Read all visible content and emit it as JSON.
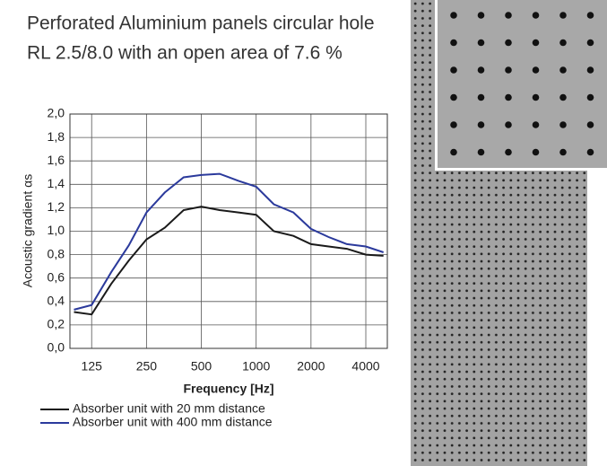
{
  "chart_data": {
    "type": "line",
    "title": "Perforated Aluminium panels circular hole",
    "subtitle": "RL 2.5/8.0 with an open area of 7.6 %",
    "x_label": "Frequency [Hz]",
    "y_label": "Acoustic gradient αs",
    "x": [
      100,
      125,
      160,
      200,
      250,
      315,
      400,
      500,
      630,
      800,
      1000,
      1250,
      1600,
      2000,
      2500,
      3150,
      4000,
      5000
    ],
    "series": [
      {
        "name": "Absorber unit with 20 mm distance",
        "color": "#1a1a1a",
        "values": [
          0.31,
          0.29,
          0.55,
          0.75,
          0.93,
          1.03,
          1.18,
          1.21,
          1.18,
          1.16,
          1.14,
          1.0,
          0.96,
          0.89,
          0.87,
          0.85,
          0.8,
          0.79
        ]
      },
      {
        "name": "Absorber unit with 400 mm distance",
        "color": "#2b3a9c",
        "values": [
          0.33,
          0.37,
          0.65,
          0.88,
          1.16,
          1.33,
          1.46,
          1.48,
          1.49,
          1.43,
          1.38,
          1.23,
          1.16,
          1.02,
          0.95,
          0.89,
          0.87,
          0.82
        ]
      }
    ],
    "xscale": "log",
    "xlim": [
      95,
      5250
    ],
    "xticks": [
      125,
      250,
      500,
      1000,
      2000,
      4000
    ],
    "ylim": [
      0,
      2
    ],
    "yticks": [
      {
        "value": 0,
        "label": "0,0"
      },
      {
        "value": 0.2,
        "label": "0,2"
      },
      {
        "value": 0.4,
        "label": "0,4"
      },
      {
        "value": 0.6,
        "label": "0,6"
      },
      {
        "value": 0.8,
        "label": "0,8"
      },
      {
        "value": 1.0,
        "label": "1,0"
      },
      {
        "value": 1.2,
        "label": "1,2"
      },
      {
        "value": 1.4,
        "label": "1,4"
      },
      {
        "value": 1.6,
        "label": "1,6"
      },
      {
        "value": 1.8,
        "label": "1,8"
      },
      {
        "value": 2.0,
        "label": "2,0"
      }
    ],
    "grid": true
  }
}
